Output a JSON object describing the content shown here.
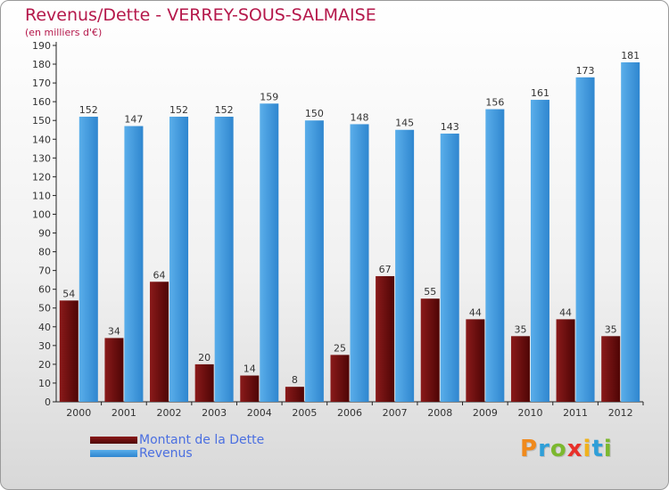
{
  "title": "Revenus/Dette - VERREY-SOUS-SALMAISE",
  "subtitle": "(en milliers d'€)",
  "logo_text": "Proxiti",
  "colors": {
    "title": "#b5184b",
    "dette": "#7a0f0f",
    "revenus": "#3f9ae0",
    "legend_text": "#4b6fe0"
  },
  "chart_data": {
    "type": "bar",
    "categories": [
      "2000",
      "2001",
      "2002",
      "2003",
      "2004",
      "2005",
      "2006",
      "2007",
      "2008",
      "2009",
      "2010",
      "2011",
      "2012"
    ],
    "series": [
      {
        "name": "Montant de la Dette",
        "values": [
          54,
          34,
          64,
          20,
          14,
          8,
          25,
          67,
          55,
          44,
          35,
          44,
          35
        ]
      },
      {
        "name": "Revenus",
        "values": [
          152,
          147,
          152,
          152,
          159,
          150,
          148,
          145,
          143,
          156,
          161,
          173,
          181
        ]
      }
    ],
    "ylim": [
      0,
      190
    ],
    "yticks": [
      0,
      10,
      20,
      30,
      40,
      50,
      60,
      70,
      80,
      90,
      100,
      110,
      120,
      130,
      140,
      150,
      160,
      170,
      180,
      190
    ],
    "grid": false,
    "legend": "bottom-left"
  }
}
